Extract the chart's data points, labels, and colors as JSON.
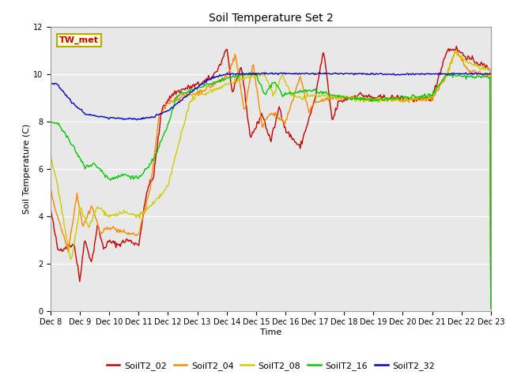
{
  "title": "Soil Temperature Set 2",
  "xlabel": "Time",
  "ylabel": "Soil Temperature (C)",
  "ylim": [
    0,
    12
  ],
  "bg_color": "#e8e8e8",
  "fig_color": "#ffffff",
  "annotation_text": "TW_met",
  "annotation_color": "#cc0000",
  "annotation_bg": "#ffffdd",
  "annotation_border": "#bbaa00",
  "series_colors": {
    "SoilT2_02": "#cc0000",
    "SoilT2_04": "#ff8800",
    "SoilT2_08": "#cccc00",
    "SoilT2_16": "#00cc00",
    "SoilT2_32": "#0000cc"
  },
  "xtick_labels": [
    "Dec 8",
    "Dec 9",
    "Dec 10",
    "Dec 11",
    "Dec 12",
    "Dec 13",
    "Dec 14",
    "Dec 15",
    "Dec 16",
    "Dec 17",
    "Dec 18",
    "Dec 19",
    "Dec 20",
    "Dec 21",
    "Dec 22",
    "Dec 23"
  ],
  "ytick_labels": [
    "0",
    "2",
    "4",
    "6",
    "8",
    "10",
    "12"
  ],
  "title_fontsize": 10,
  "axis_label_fontsize": 8,
  "tick_fontsize": 7,
  "legend_fontsize": 8,
  "num_points": 500
}
